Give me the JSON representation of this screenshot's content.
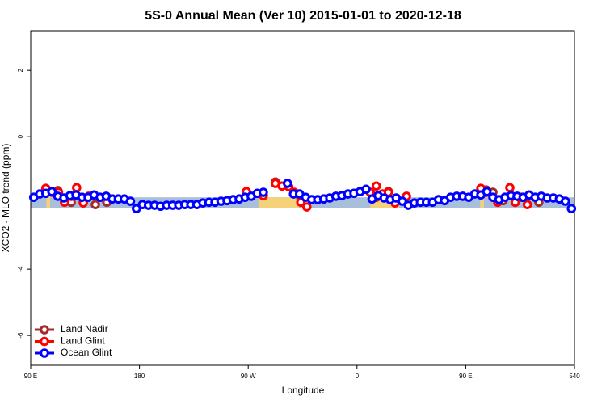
{
  "chart_data": {
    "type": "scatter",
    "title": "5S-0 Annual Mean (Ver 10)   2015-01-01 to 2020-12-18",
    "x_label": "Longitude",
    "y_label": "XCO2 - MLO trend (ppm)",
    "xlim": [
      90,
      540
    ],
    "ylim": [
      -6.9,
      3.2
    ],
    "xticks": [
      {
        "value": 90,
        "label": "90 E"
      },
      180,
      {
        "value": 270,
        "label": "90 W"
      },
      {
        "value": 360,
        "label": "0"
      },
      {
        "value": 450,
        "label": "90 E"
      },
      540
    ],
    "yticks": [
      -6,
      -4,
      0,
      2
    ],
    "legend": "bottom-left",
    "bands": [
      {
        "color": "#a9bedb",
        "x": [
          90,
          540
        ],
        "y": [
          -1.83,
          -2.15
        ]
      },
      {
        "color": "#f5d27a",
        "x": [
          278.5,
          312
        ],
        "y": [
          -1.83,
          -2.15
        ]
      },
      {
        "color": "#f5d27a",
        "x": [
          371,
          395
        ],
        "y": [
          -1.83,
          -2.15
        ]
      },
      {
        "color": "#f5d27a",
        "x": [
          103,
          106
        ],
        "y": [
          -1.83,
          -2.15
        ]
      },
      {
        "color": "#f5d27a",
        "x": [
          462,
          465
        ],
        "y": [
          -1.83,
          -2.15
        ]
      }
    ],
    "series": [
      {
        "name": "Land Nadir",
        "color": "#a52a2a",
        "x": [
          112.5,
          123.5,
          133.5,
          143.5,
          153,
          292.5,
          313.5,
          318.5,
          376,
          386,
          467,
          472.5,
          481,
          491,
          510.5
        ],
        "values": [
          -1.63,
          -1.98,
          -1.98,
          -2.05,
          -1.98,
          -1.37,
          -1.85,
          -1.98,
          -1.83,
          -1.66,
          -1.61,
          -1.68,
          -1.93,
          -1.98,
          -1.98
        ]
      },
      {
        "name": "Land Glint",
        "color": "#ff0000",
        "x": [
          102.5,
          107.5,
          113,
          118,
          123.5,
          128,
          133.5,
          138,
          268.5,
          282.5,
          292.5,
          298,
          303.5,
          308,
          313.5,
          318.5,
          371,
          376,
          381,
          386,
          391.5,
          401,
          462.5,
          467,
          476.5,
          486.5,
          491,
          496,
          501
        ],
        "values": [
          -1.56,
          -1.68,
          -1.68,
          -1.98,
          -1.8,
          -1.54,
          -2.0,
          -1.8,
          -1.66,
          -1.78,
          -1.41,
          -1.49,
          -1.51,
          -1.68,
          -1.98,
          -2.12,
          -1.68,
          -1.49,
          -1.73,
          -1.68,
          -2.0,
          -1.8,
          -1.56,
          -1.68,
          -1.98,
          -1.54,
          -1.98,
          -1.83,
          -2.05
        ]
      },
      {
        "name": "Ocean Glint",
        "color": "#0000ff",
        "x": [
          92.5,
          97.5,
          102.5,
          107.5,
          112.5,
          117.5,
          122.5,
          127.5,
          132.5,
          137.5,
          142.5,
          147.5,
          152.5,
          157.5,
          162.5,
          167.5,
          172.5,
          177.5,
          182.5,
          187.5,
          192.5,
          197.5,
          202.5,
          207.5,
          212.5,
          217.5,
          222.5,
          227.5,
          232.5,
          237.5,
          242.5,
          247.5,
          252.5,
          257.5,
          262.5,
          267.5,
          272.5,
          277.5,
          282.5,
          302.5,
          307.5,
          312.5,
          317.5,
          322.5,
          327.5,
          332.5,
          337.5,
          342.5,
          347.5,
          352.5,
          357.5,
          362.5,
          367.5,
          372.5,
          377.5,
          382.5,
          387.5,
          392.5,
          397.5,
          402.5,
          407.5,
          412.5,
          417.5,
          422.5,
          427.5,
          432.5,
          437.5,
          442.5,
          447.5,
          452.5,
          457.5,
          462.5,
          467.5,
          472.5,
          477.5,
          482.5,
          487.5,
          492.5,
          497.5,
          502.5,
          507.5,
          512.5,
          517.5,
          522.5,
          527.5,
          532.5,
          537.5
        ],
        "values": [
          -1.83,
          -1.73,
          -1.71,
          -1.66,
          -1.8,
          -1.85,
          -1.78,
          -1.76,
          -1.83,
          -1.83,
          -1.76,
          -1.83,
          -1.8,
          -1.88,
          -1.88,
          -1.88,
          -1.95,
          -2.17,
          -2.05,
          -2.07,
          -2.07,
          -2.1,
          -2.07,
          -2.07,
          -2.07,
          -2.05,
          -2.05,
          -2.05,
          -2.0,
          -1.98,
          -1.98,
          -1.95,
          -1.93,
          -1.9,
          -1.88,
          -1.83,
          -1.8,
          -1.71,
          -1.68,
          -1.41,
          -1.73,
          -1.73,
          -1.83,
          -1.9,
          -1.9,
          -1.88,
          -1.85,
          -1.8,
          -1.78,
          -1.73,
          -1.71,
          -1.66,
          -1.59,
          -1.88,
          -1.78,
          -1.85,
          -1.9,
          -1.85,
          -1.95,
          -2.07,
          -2.0,
          -1.98,
          -1.98,
          -1.98,
          -1.9,
          -1.93,
          -1.83,
          -1.8,
          -1.8,
          -1.83,
          -1.73,
          -1.76,
          -1.66,
          -1.83,
          -1.9,
          -1.83,
          -1.78,
          -1.8,
          -1.83,
          -1.76,
          -1.83,
          -1.8,
          -1.85,
          -1.85,
          -1.88,
          -1.95,
          -2.17
        ]
      }
    ]
  }
}
